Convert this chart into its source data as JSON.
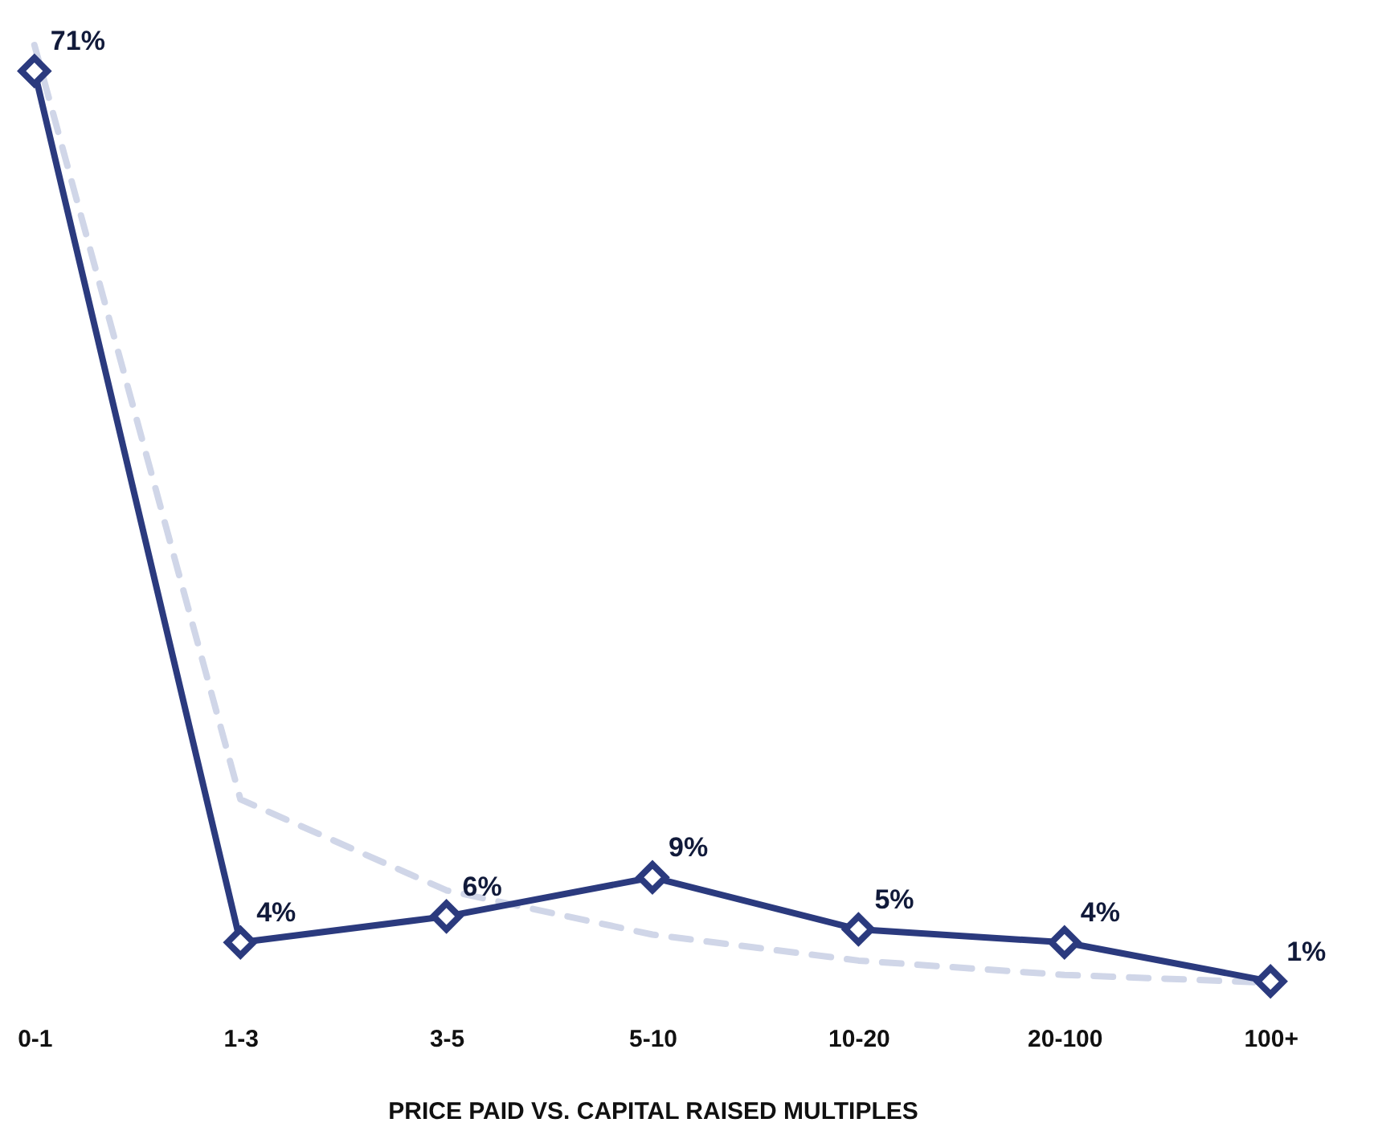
{
  "chart_data": {
    "type": "line",
    "categories": [
      "0-1",
      "1-3",
      "3-5",
      "5-10",
      "10-20",
      "20-100",
      "100+"
    ],
    "xlabel": "PRICE PAID VS. CAPITAL RAISED MULTIPLES",
    "series": [
      {
        "color": "#d0d6e8",
        "line_style": "dashed",
        "marker": "none",
        "values": [
          73,
          15,
          8,
          4.6,
          2.6,
          1.5,
          0.9
        ]
      },
      {
        "color": "#2b3a7e",
        "line_style": "solid",
        "marker": "diamond",
        "values": [
          71,
          4,
          6,
          9,
          5,
          4,
          1
        ],
        "value_labels": [
          "71%",
          "4%",
          "6%",
          "9%",
          "5%",
          "4%",
          "1%"
        ]
      }
    ]
  }
}
